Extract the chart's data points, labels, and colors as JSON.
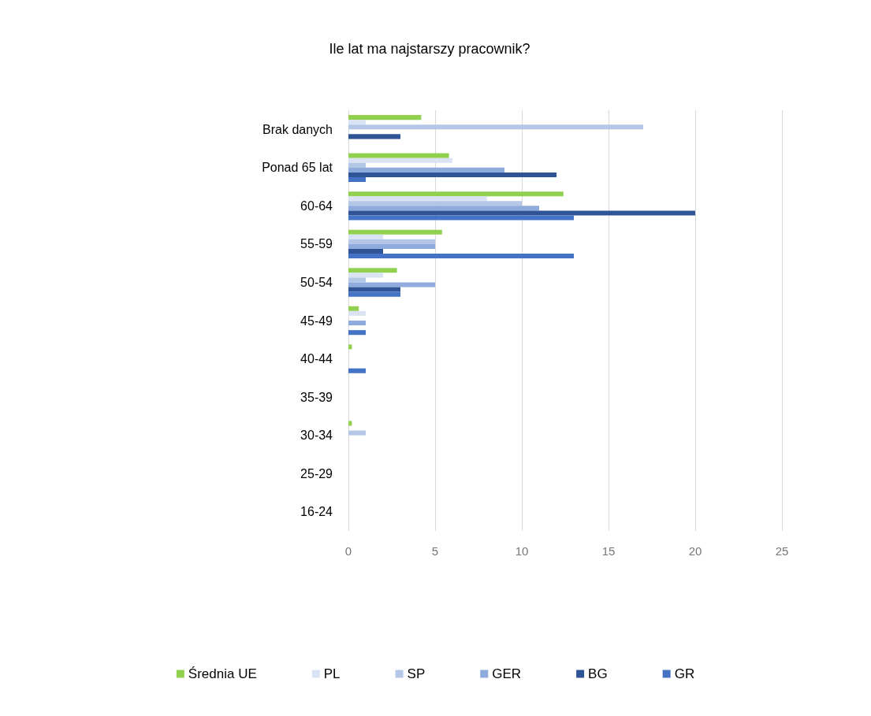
{
  "chart_data": {
    "type": "bar",
    "orientation": "horizontal",
    "title": "Ile lat ma najstarszy pracownik?",
    "categories": [
      "Brak danych",
      "Ponad 65 lat",
      "60-64",
      "55-59",
      "50-54",
      "45-49",
      "40-44",
      "35-39",
      "30-34",
      "25-29",
      "16-24"
    ],
    "series": [
      {
        "name": "Średnia UE",
        "color": "#92d050",
        "values": [
          4.2,
          5.8,
          12.4,
          5.4,
          2.8,
          0.6,
          0.2,
          0,
          0.2,
          0,
          0
        ]
      },
      {
        "name": "PL",
        "color": "#dae3f3",
        "values": [
          1,
          6,
          8,
          2,
          2,
          1,
          0,
          0,
          0,
          0,
          0
        ]
      },
      {
        "name": "SP",
        "color": "#b4c7e7",
        "values": [
          17,
          1,
          10,
          5,
          1,
          0,
          0,
          0,
          1,
          0,
          0
        ]
      },
      {
        "name": "GER",
        "color": "#8faadc",
        "values": [
          0,
          9,
          11,
          5,
          5,
          1,
          0,
          0,
          0,
          0,
          0
        ]
      },
      {
        "name": "BG",
        "color": "#2f5597",
        "values": [
          3,
          12,
          20,
          2,
          3,
          0,
          0,
          0,
          0,
          0,
          0
        ]
      },
      {
        "name": "GR",
        "color": "#4472c4",
        "values": [
          0,
          1,
          13,
          13,
          3,
          1,
          1,
          0,
          0,
          0,
          0
        ]
      }
    ],
    "xlim": [
      0,
      25
    ],
    "xticks": [
      0,
      5,
      10,
      15,
      20,
      25
    ],
    "grid": "x",
    "legend": "bottom"
  }
}
